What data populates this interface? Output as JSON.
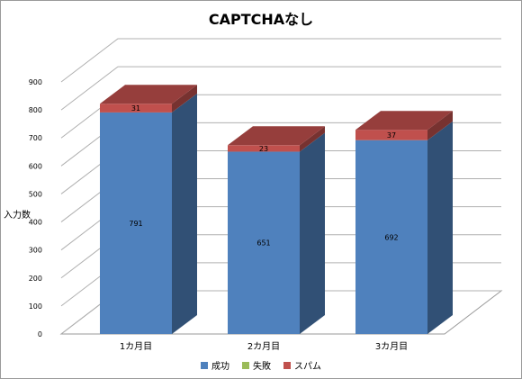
{
  "chart_data": {
    "type": "bar",
    "stacked": true,
    "three_d": true,
    "title": "CAPTCHAなし",
    "ylabel": "入力数",
    "xlabel": "",
    "ylim": [
      0,
      900
    ],
    "y_ticks": [
      0,
      100,
      200,
      300,
      400,
      500,
      600,
      700,
      800,
      900
    ],
    "categories": [
      "1カ月目",
      "2カ月目",
      "3カ月目"
    ],
    "series": [
      {
        "name": "成功",
        "color": "#4f81bd",
        "values": [
          791,
          651,
          692
        ],
        "labels": [
          "791",
          "651",
          "692"
        ]
      },
      {
        "name": "失敗",
        "color": "#9bbb59",
        "values": [
          0,
          0,
          0
        ],
        "labels": [
          "",
          "",
          ""
        ]
      },
      {
        "name": "スパム",
        "color": "#c0504d",
        "values": [
          31,
          23,
          37
        ],
        "labels": [
          "31",
          "23",
          "37"
        ]
      }
    ],
    "grid": true,
    "legend_position": "bottom"
  }
}
